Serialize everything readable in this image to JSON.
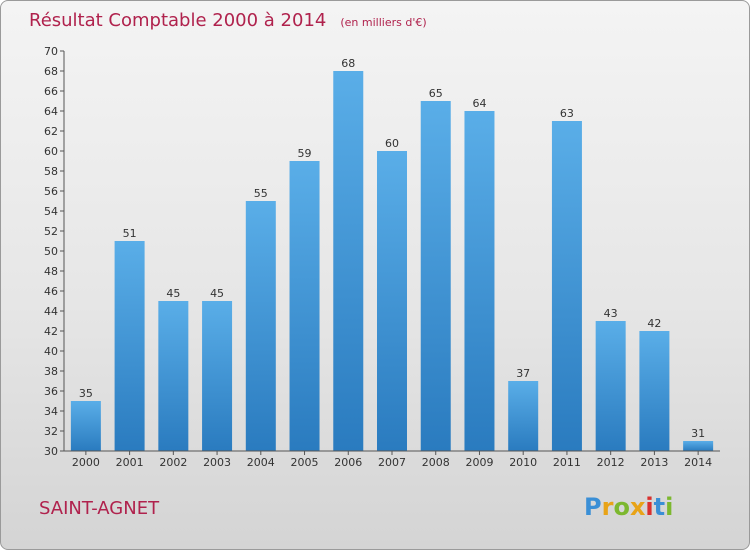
{
  "chart_data": {
    "type": "bar",
    "title": "Résultat Comptable 2000 à 2014",
    "subtitle": "(en milliers d'€)",
    "categories": [
      "2000",
      "2001",
      "2002",
      "2003",
      "2004",
      "2005",
      "2006",
      "2007",
      "2008",
      "2009",
      "2010",
      "2011",
      "2012",
      "2013",
      "2014"
    ],
    "values": [
      35,
      51,
      45,
      45,
      55,
      59,
      68,
      60,
      65,
      64,
      37,
      63,
      43,
      42,
      31
    ],
    "ylim": [
      30,
      70
    ],
    "ytick_step": 2,
    "grid": false,
    "colors": {
      "bar_light": "#5aaee8",
      "bar_dark": "#2a7bbf",
      "title": "#b0224d"
    }
  },
  "place_name": "SAINT-AGNET",
  "logo": {
    "text": "Proxiti",
    "colors": [
      "#3a8fd6",
      "#e8a317",
      "#7cb82f",
      "#e8a317",
      "#d9302e",
      "#3a8fd6",
      "#7cb82f"
    ]
  }
}
